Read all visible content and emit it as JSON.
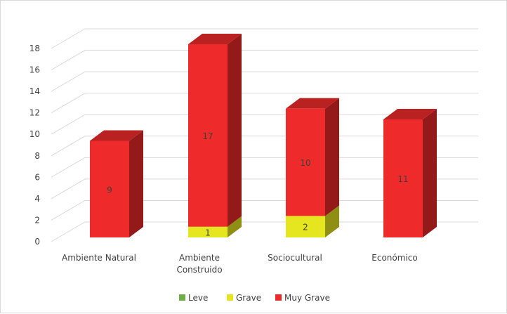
{
  "chart_data": {
    "type": "bar",
    "stacked": true,
    "three_d": true,
    "categories": [
      [
        "Ambiente Natural"
      ],
      [
        "Ambiente",
        "Construido"
      ],
      [
        "Sociocultural"
      ],
      [
        "Económico"
      ]
    ],
    "series": [
      {
        "name": "Leve",
        "color": "#70ad47",
        "values": [
          0,
          0,
          0,
          0
        ]
      },
      {
        "name": "Grave",
        "color": "#e6e620",
        "values": [
          0,
          1,
          2,
          0
        ]
      },
      {
        "name": "Muy Grave",
        "color": "#ee2a2a",
        "values": [
          9,
          17,
          10,
          11
        ]
      }
    ],
    "ylim": [
      0,
      18
    ],
    "yticks": [
      0,
      2,
      4,
      6,
      8,
      10,
      12,
      14,
      16,
      18
    ],
    "grid": true,
    "legend_position": "bottom"
  }
}
